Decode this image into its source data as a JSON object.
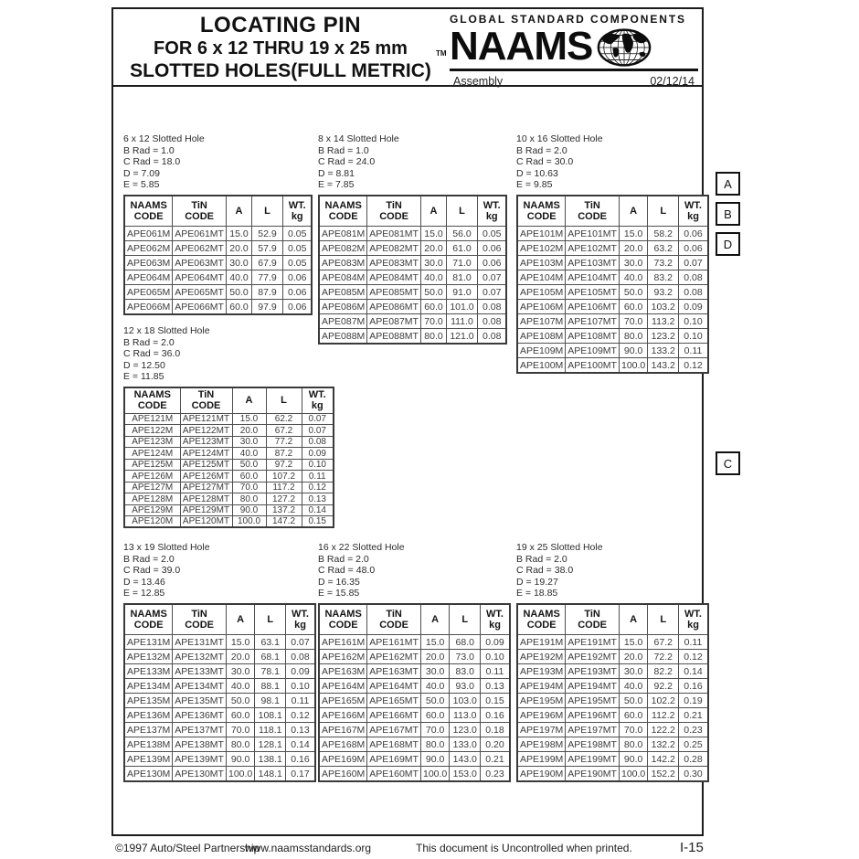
{
  "header": {
    "title_line1": "LOCATING PIN",
    "title_line2": "FOR 6 x 12 THRU 19 x 25 mm",
    "title_line3": "SLOTTED HOLES(FULL METRIC)",
    "trademark": "TM",
    "brand": {
      "tagline": "GLOBAL STANDARD COMPONENTS",
      "name": "NAAMS",
      "globe_icon": "globe-world-map-icon",
      "category": "Assembly",
      "date": "02/12/14"
    }
  },
  "column_headers": [
    [
      "NAAMS",
      "CODE"
    ],
    [
      "TiN",
      "CODE"
    ],
    [
      "A"
    ],
    [
      "L"
    ],
    [
      "WT.",
      "kg"
    ]
  ],
  "tables": [
    {
      "title": "6 x 12 Slotted Hole",
      "specs": [
        "B Rad = 1.0",
        "C Rad = 18.0",
        "D = 7.09",
        "E = 5.85"
      ],
      "rows": [
        [
          "APE061M",
          "APE061MT",
          "15.0",
          "52.9",
          "0.05"
        ],
        [
          "APE062M",
          "APE062MT",
          "20.0",
          "57.9",
          "0.05"
        ],
        [
          "APE063M",
          "APE063MT",
          "30.0",
          "67.9",
          "0.05"
        ],
        [
          "APE064M",
          "APE064MT",
          "40.0",
          "77.9",
          "0.06"
        ],
        [
          "APE065M",
          "APE065MT",
          "50.0",
          "87.9",
          "0.06"
        ],
        [
          "APE066M",
          "APE066MT",
          "60.0",
          "97.9",
          "0.06"
        ]
      ]
    },
    {
      "title": "8 x 14 Slotted Hole",
      "specs": [
        "B Rad = 1.0",
        "C Rad = 24.0",
        "D = 8.81",
        "E = 7.85"
      ],
      "rows": [
        [
          "APE081M",
          "APE081MT",
          "15.0",
          "56.0",
          "0.05"
        ],
        [
          "APE082M",
          "APE082MT",
          "20.0",
          "61.0",
          "0.06"
        ],
        [
          "APE083M",
          "APE083MT",
          "30.0",
          "71.0",
          "0.06"
        ],
        [
          "APE084M",
          "APE084MT",
          "40.0",
          "81.0",
          "0.07"
        ],
        [
          "APE085M",
          "APE085MT",
          "50.0",
          "91.0",
          "0.07"
        ],
        [
          "APE086M",
          "APE086MT",
          "60.0",
          "101.0",
          "0.08"
        ],
        [
          "APE087M",
          "APE087MT",
          "70.0",
          "111.0",
          "0.08"
        ],
        [
          "APE088M",
          "APE088MT",
          "80.0",
          "121.0",
          "0.08"
        ]
      ]
    },
    {
      "title": "10 x 16 Slotted Hole",
      "specs": [
        "B Rad = 2.0",
        "C Rad = 30.0",
        "D = 10.63",
        "E = 9.85"
      ],
      "rows": [
        [
          "APE101M",
          "APE101MT",
          "15.0",
          "58.2",
          "0.06"
        ],
        [
          "APE102M",
          "APE102MT",
          "20.0",
          "63.2",
          "0.06"
        ],
        [
          "APE103M",
          "APE103MT",
          "30.0",
          "73.2",
          "0.07"
        ],
        [
          "APE104M",
          "APE104MT",
          "40.0",
          "83.2",
          "0.08"
        ],
        [
          "APE105M",
          "APE105MT",
          "50.0",
          "93.2",
          "0.08"
        ],
        [
          "APE106M",
          "APE106MT",
          "60.0",
          "103.2",
          "0.09"
        ],
        [
          "APE107M",
          "APE107MT",
          "70.0",
          "113.2",
          "0.10"
        ],
        [
          "APE108M",
          "APE108MT",
          "80.0",
          "123.2",
          "0.10"
        ],
        [
          "APE109M",
          "APE109MT",
          "90.0",
          "133.2",
          "0.11"
        ],
        [
          "APE100M",
          "APE100MT",
          "100.0",
          "143.2",
          "0.12"
        ]
      ]
    },
    {
      "title": "12 x 18 Slotted Hole",
      "specs": [
        "B Rad = 2.0",
        "C Rad = 36.0",
        "D = 12.50",
        "E = 11.85"
      ],
      "rows": [
        [
          "APE121M",
          "APE121MT",
          "15.0",
          "62.2",
          "0.07"
        ],
        [
          "APE122M",
          "APE122MT",
          "20.0",
          "67.2",
          "0.07"
        ],
        [
          "APE123M",
          "APE123MT",
          "30.0",
          "77.2",
          "0.08"
        ],
        [
          "APE124M",
          "APE124MT",
          "40.0",
          "87.2",
          "0.09"
        ],
        [
          "APE125M",
          "APE125MT",
          "50.0",
          "97.2",
          "0.10"
        ],
        [
          "APE126M",
          "APE126MT",
          "60.0",
          "107.2",
          "0.11"
        ],
        [
          "APE127M",
          "APE127MT",
          "70.0",
          "117.2",
          "0.12"
        ],
        [
          "APE128M",
          "APE128MT",
          "80.0",
          "127.2",
          "0.13"
        ],
        [
          "APE129M",
          "APE129MT",
          "90.0",
          "137.2",
          "0.14"
        ],
        [
          "APE120M",
          "APE120MT",
          "100.0",
          "147.2",
          "0.15"
        ]
      ]
    },
    {
      "title": "13 x 19 Slotted Hole",
      "specs": [
        "B Rad = 2.0",
        "C Rad = 39.0",
        "D = 13.46",
        "E = 12.85"
      ],
      "rows": [
        [
          "APE131M",
          "APE131MT",
          "15.0",
          "63.1",
          "0.07"
        ],
        [
          "APE132M",
          "APE132MT",
          "20.0",
          "68.1",
          "0.08"
        ],
        [
          "APE133M",
          "APE133MT",
          "30.0",
          "78.1",
          "0.09"
        ],
        [
          "APE134M",
          "APE134MT",
          "40.0",
          "88.1",
          "0.10"
        ],
        [
          "APE135M",
          "APE135MT",
          "50.0",
          "98.1",
          "0.11"
        ],
        [
          "APE136M",
          "APE136MT",
          "60.0",
          "108.1",
          "0.12"
        ],
        [
          "APE137M",
          "APE137MT",
          "70.0",
          "118.1",
          "0.13"
        ],
        [
          "APE138M",
          "APE138MT",
          "80.0",
          "128.1",
          "0.14"
        ],
        [
          "APE139M",
          "APE139MT",
          "90.0",
          "138.1",
          "0.16"
        ],
        [
          "APE130M",
          "APE130MT",
          "100.0",
          "148.1",
          "0.17"
        ]
      ]
    },
    {
      "title": "16 x 22 Slotted Hole",
      "specs": [
        "B Rad = 2.0",
        "C Rad = 48.0",
        "D = 16.35",
        "E = 15.85"
      ],
      "rows": [
        [
          "APE161M",
          "APE161MT",
          "15.0",
          "68.0",
          "0.09"
        ],
        [
          "APE162M",
          "APE162MT",
          "20.0",
          "73.0",
          "0.10"
        ],
        [
          "APE163M",
          "APE163MT",
          "30.0",
          "83.0",
          "0.11"
        ],
        [
          "APE164M",
          "APE164MT",
          "40.0",
          "93.0",
          "0.13"
        ],
        [
          "APE165M",
          "APE165MT",
          "50.0",
          "103.0",
          "0.15"
        ],
        [
          "APE166M",
          "APE166MT",
          "60.0",
          "113.0",
          "0.16"
        ],
        [
          "APE167M",
          "APE167MT",
          "70.0",
          "123.0",
          "0.18"
        ],
        [
          "APE168M",
          "APE168MT",
          "80.0",
          "133.0",
          "0.20"
        ],
        [
          "APE169M",
          "APE169MT",
          "90.0",
          "143.0",
          "0.21"
        ],
        [
          "APE160M",
          "APE160MT",
          "100.0",
          "153.0",
          "0.23"
        ]
      ]
    },
    {
      "title": "19 x 25 Slotted Hole",
      "specs": [
        "B Rad = 2.0",
        "C Rad = 38.0",
        "D = 19.27",
        "E = 18.85"
      ],
      "rows": [
        [
          "APE191M",
          "APE191MT",
          "15.0",
          "67.2",
          "0.11"
        ],
        [
          "APE192M",
          "APE192MT",
          "20.0",
          "72.2",
          "0.12"
        ],
        [
          "APE193M",
          "APE193MT",
          "30.0",
          "82.2",
          "0.14"
        ],
        [
          "APE194M",
          "APE194MT",
          "40.0",
          "92.2",
          "0.16"
        ],
        [
          "APE195M",
          "APE195MT",
          "50.0",
          "102.2",
          "0.19"
        ],
        [
          "APE196M",
          "APE196MT",
          "60.0",
          "112.2",
          "0.21"
        ],
        [
          "APE197M",
          "APE197MT",
          "70.0",
          "122.2",
          "0.23"
        ],
        [
          "APE198M",
          "APE198MT",
          "80.0",
          "132.2",
          "0.25"
        ],
        [
          "APE199M",
          "APE199MT",
          "90.0",
          "142.2",
          "0.28"
        ],
        [
          "APE190M",
          "APE190MT",
          "100.0",
          "152.2",
          "0.30"
        ]
      ]
    }
  ],
  "side_labels": [
    {
      "label": "A"
    },
    {
      "label": "B"
    },
    {
      "label": "D"
    },
    {
      "label": "C"
    }
  ],
  "footer": {
    "copyright": "©1997 Auto/Steel Partnership",
    "website": "www.naamsstandards.org",
    "notice": "This document is Uncontrolled when printed.",
    "page_number": "I-15"
  }
}
